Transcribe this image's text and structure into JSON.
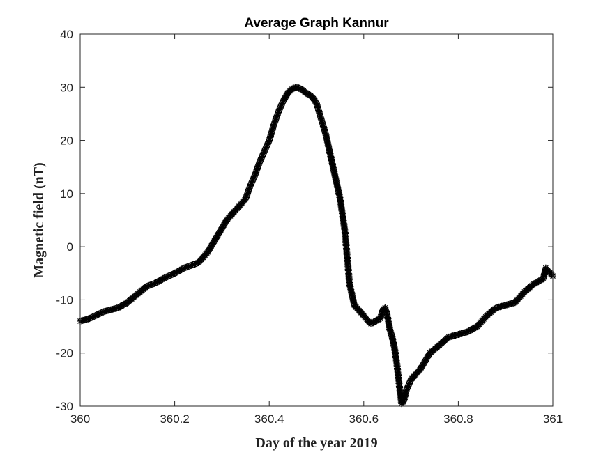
{
  "chart_data": {
    "type": "scatter",
    "title": "Average Graph Kannur",
    "xlabel": "Day of the year 2019",
    "ylabel": "Magnetic field (nT)",
    "xlim": [
      360,
      361
    ],
    "ylim": [
      -30,
      40
    ],
    "xticks": [
      360,
      360.2,
      360.4,
      360.6,
      360.8,
      361
    ],
    "xtick_labels": [
      "360",
      "360.2",
      "360.4",
      "360.6",
      "360.8",
      "361"
    ],
    "yticks": [
      40,
      30,
      20,
      10,
      0,
      -10,
      -20,
      -30
    ],
    "ytick_labels": [
      "40",
      "30",
      "20",
      "10",
      "0",
      "-10",
      "-20",
      "-30"
    ],
    "grid": false,
    "legend": false,
    "marker": "asterisk",
    "marker_color": "#000000",
    "series": [
      {
        "x": [
          360.0,
          360.02,
          360.05,
          360.08,
          360.1,
          360.12,
          360.14,
          360.16,
          360.18,
          360.2,
          360.22,
          360.25,
          360.27,
          360.29,
          360.31,
          360.33,
          360.35,
          360.36,
          360.37,
          360.38,
          360.39,
          360.4,
          360.41,
          360.42,
          360.43,
          360.44,
          360.45,
          360.46,
          360.47,
          360.48,
          360.49,
          360.5,
          360.51,
          360.52,
          360.53,
          360.54,
          360.55,
          360.56,
          360.565,
          360.57,
          360.58,
          360.6,
          360.615,
          360.625,
          360.635,
          360.64,
          360.645,
          360.65,
          360.655,
          360.66,
          360.665,
          360.67,
          360.675,
          360.68,
          360.685,
          360.69,
          360.7,
          360.72,
          360.74,
          360.76,
          360.78,
          360.8,
          360.82,
          360.84,
          360.86,
          360.88,
          360.9,
          360.92,
          360.94,
          360.96,
          360.98,
          360.985,
          361.0
        ],
        "y": [
          -14,
          -13.5,
          -12.2,
          -11.5,
          -10.5,
          -9,
          -7.5,
          -6.8,
          -5.8,
          -5,
          -4,
          -3,
          -1,
          2,
          5,
          7,
          9,
          11.5,
          13.5,
          16,
          18,
          20,
          23,
          25.5,
          27.5,
          29,
          29.8,
          30,
          29.5,
          28.8,
          28.3,
          27,
          24,
          21,
          17,
          13,
          9,
          3,
          -2,
          -7,
          -11,
          -13,
          -14.5,
          -14,
          -13.5,
          -12,
          -11.5,
          -13,
          -15.5,
          -17,
          -19,
          -22,
          -26,
          -29.5,
          -29,
          -27,
          -25,
          -23,
          -20,
          -18.5,
          -17,
          -16.5,
          -16,
          -15,
          -13,
          -11.5,
          -11,
          -10.5,
          -8.5,
          -7,
          -6,
          -4,
          -5.5
        ]
      }
    ]
  }
}
